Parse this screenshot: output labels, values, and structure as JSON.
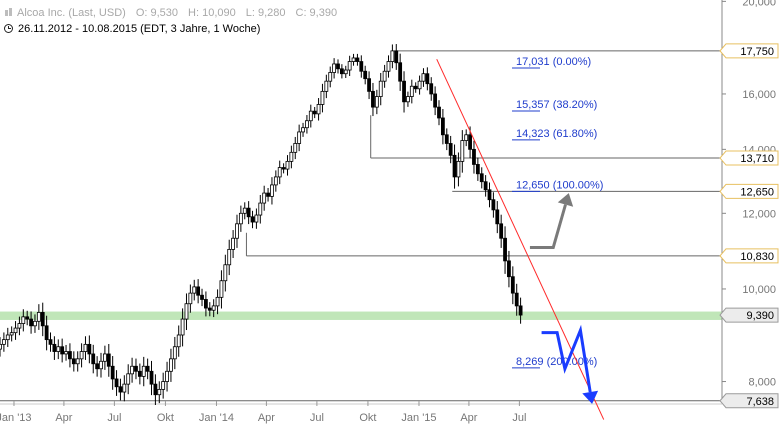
{
  "header": {
    "instrument": "Alcoa Inc. (Last, USD)",
    "open": "O: 9,530",
    "high": "H: 10,090",
    "low": "L: 9,280",
    "close": "C: 9,390",
    "period": "26.11.2012 - 10.08.2015 (EDT, 3 Jahre, 1 Woche)"
  },
  "colors": {
    "candle_up": "#ffffff",
    "candle_down": "#000000",
    "fib_text": "#1f3ccc",
    "trendline": "#ff2a2a",
    "support_band": "#b9e3b0",
    "arrow_up": "#7a7a7a",
    "arrow_down": "#1a3cff",
    "price_tag_gold": "#e8c060"
  },
  "chart_data": {
    "type": "candlestick",
    "title": "Alcoa Inc. (Last, USD)",
    "interval": "1 Woche",
    "x_range": [
      "2012-11-26",
      "2015-08-10"
    ],
    "ylim": [
      7.4,
      20.3
    ],
    "y_scale": "log",
    "grid": false,
    "x_ticks": [
      "Jan '13",
      "Apr",
      "Jul",
      "Okt",
      "Jan '14",
      "Apr",
      "Jul",
      "Okt",
      "Jan '15",
      "Apr",
      "Jul"
    ],
    "x_tick_dates": [
      "2013-01-01",
      "2013-04-01",
      "2013-07-01",
      "2013-10-01",
      "2014-01-01",
      "2014-04-01",
      "2014-07-01",
      "2014-10-01",
      "2015-01-01",
      "2015-04-01",
      "2015-07-01"
    ],
    "y_ticks": [
      {
        "value": 20.0,
        "label": "20,000"
      },
      {
        "value": 16.0,
        "label": "16,000"
      },
      {
        "value": 14.0,
        "label": "14,000"
      },
      {
        "value": 12.0,
        "label": "12,000"
      },
      {
        "value": 10.0,
        "label": "10,000"
      },
      {
        "value": 8.0,
        "label": "8,000"
      }
    ],
    "price_tags": [
      {
        "value": 17.75,
        "label": "17,750",
        "style": "gold"
      },
      {
        "value": 13.71,
        "label": "13,710",
        "style": "gold"
      },
      {
        "value": 12.65,
        "label": "12,650",
        "style": "gold"
      },
      {
        "value": 10.83,
        "label": "10,830",
        "style": "gold"
      },
      {
        "value": 9.39,
        "label": "9,390",
        "style": "gray"
      },
      {
        "value": 7.638,
        "label": "7,638",
        "style": "gray"
      }
    ],
    "horizontal_lines": [
      {
        "value": 17.75,
        "from": "2014-11-17"
      },
      {
        "value": 13.71,
        "from": "2014-10-06"
      },
      {
        "value": 12.65,
        "from": "2015-03-02"
      },
      {
        "value": 10.83,
        "from": "2014-02-24"
      },
      {
        "value": 7.638,
        "from": "2012-11-26"
      }
    ],
    "support_band": {
      "low": 9.28,
      "high": 9.47
    },
    "fibonacci": [
      {
        "value": 17.031,
        "label": "17,031 (0.00%)"
      },
      {
        "value": 15.357,
        "label": "15,357 (38.20%)"
      },
      {
        "value": 14.323,
        "label": "14,323 (61.80%)"
      },
      {
        "value": 12.65,
        "label": "12,650 (100.00%)"
      },
      {
        "value": 8.269,
        "label": "8,269 (200.00%)"
      }
    ],
    "trendline": {
      "start": [
        "2015-02-02",
        17.4
      ],
      "end": [
        "2015-11-30",
        7.3
      ]
    },
    "arrows": [
      {
        "name": "up-scenario",
        "points": [
          [
            "2015-07-20",
            11.05
          ],
          [
            "2015-08-31",
            11.05
          ],
          [
            "2015-09-28",
            12.6
          ]
        ]
      },
      {
        "name": "down-scenario",
        "points": [
          [
            "2015-08-10",
            9.0
          ],
          [
            "2015-09-07",
            9.0
          ],
          [
            "2015-09-21",
            8.25
          ],
          [
            "2015-10-19",
            9.05
          ],
          [
            "2015-11-09",
            7.58
          ]
        ]
      }
    ],
    "weekly_close": [
      8.75,
      8.85,
      8.95,
      9.0,
      9.1,
      9.2,
      9.35,
      9.3,
      9.15,
      9.25,
      9.45,
      9.15,
      8.85,
      8.75,
      8.6,
      8.7,
      8.55,
      8.6,
      8.45,
      8.35,
      8.45,
      8.6,
      8.75,
      8.55,
      8.35,
      8.25,
      8.4,
      8.55,
      8.3,
      8.05,
      7.9,
      7.8,
      7.95,
      8.15,
      8.3,
      8.2,
      8.1,
      8.3,
      8.2,
      7.95,
      7.75,
      7.85,
      8.0,
      8.2,
      8.45,
      8.7,
      8.95,
      9.3,
      9.65,
      9.9,
      10.05,
      9.85,
      9.75,
      9.55,
      9.5,
      9.6,
      9.8,
      10.2,
      10.6,
      11.0,
      11.3,
      11.7,
      12.0,
      12.15,
      11.9,
      11.75,
      11.95,
      12.3,
      12.6,
      12.5,
      12.85,
      13.1,
      13.4,
      13.35,
      13.6,
      13.9,
      14.2,
      14.6,
      14.75,
      15.0,
      15.35,
      15.25,
      15.6,
      16.1,
      16.5,
      16.85,
      17.2,
      17.0,
      16.8,
      16.95,
      17.3,
      17.45,
      17.3,
      16.9,
      16.6,
      16.1,
      15.5,
      15.9,
      16.5,
      16.9,
      17.3,
      17.75,
      17.25,
      16.5,
      15.7,
      15.9,
      16.3,
      16.2,
      16.5,
      16.8,
      16.4,
      16.0,
      15.5,
      15.1,
      14.5,
      14.2,
      13.8,
      13.1,
      13.6,
      14.3,
      14.5,
      14.0,
      13.5,
      13.2,
      12.95,
      12.7,
      12.4,
      12.1,
      11.7,
      11.3,
      10.7,
      10.3,
      9.9,
      9.6,
      9.39
    ]
  }
}
